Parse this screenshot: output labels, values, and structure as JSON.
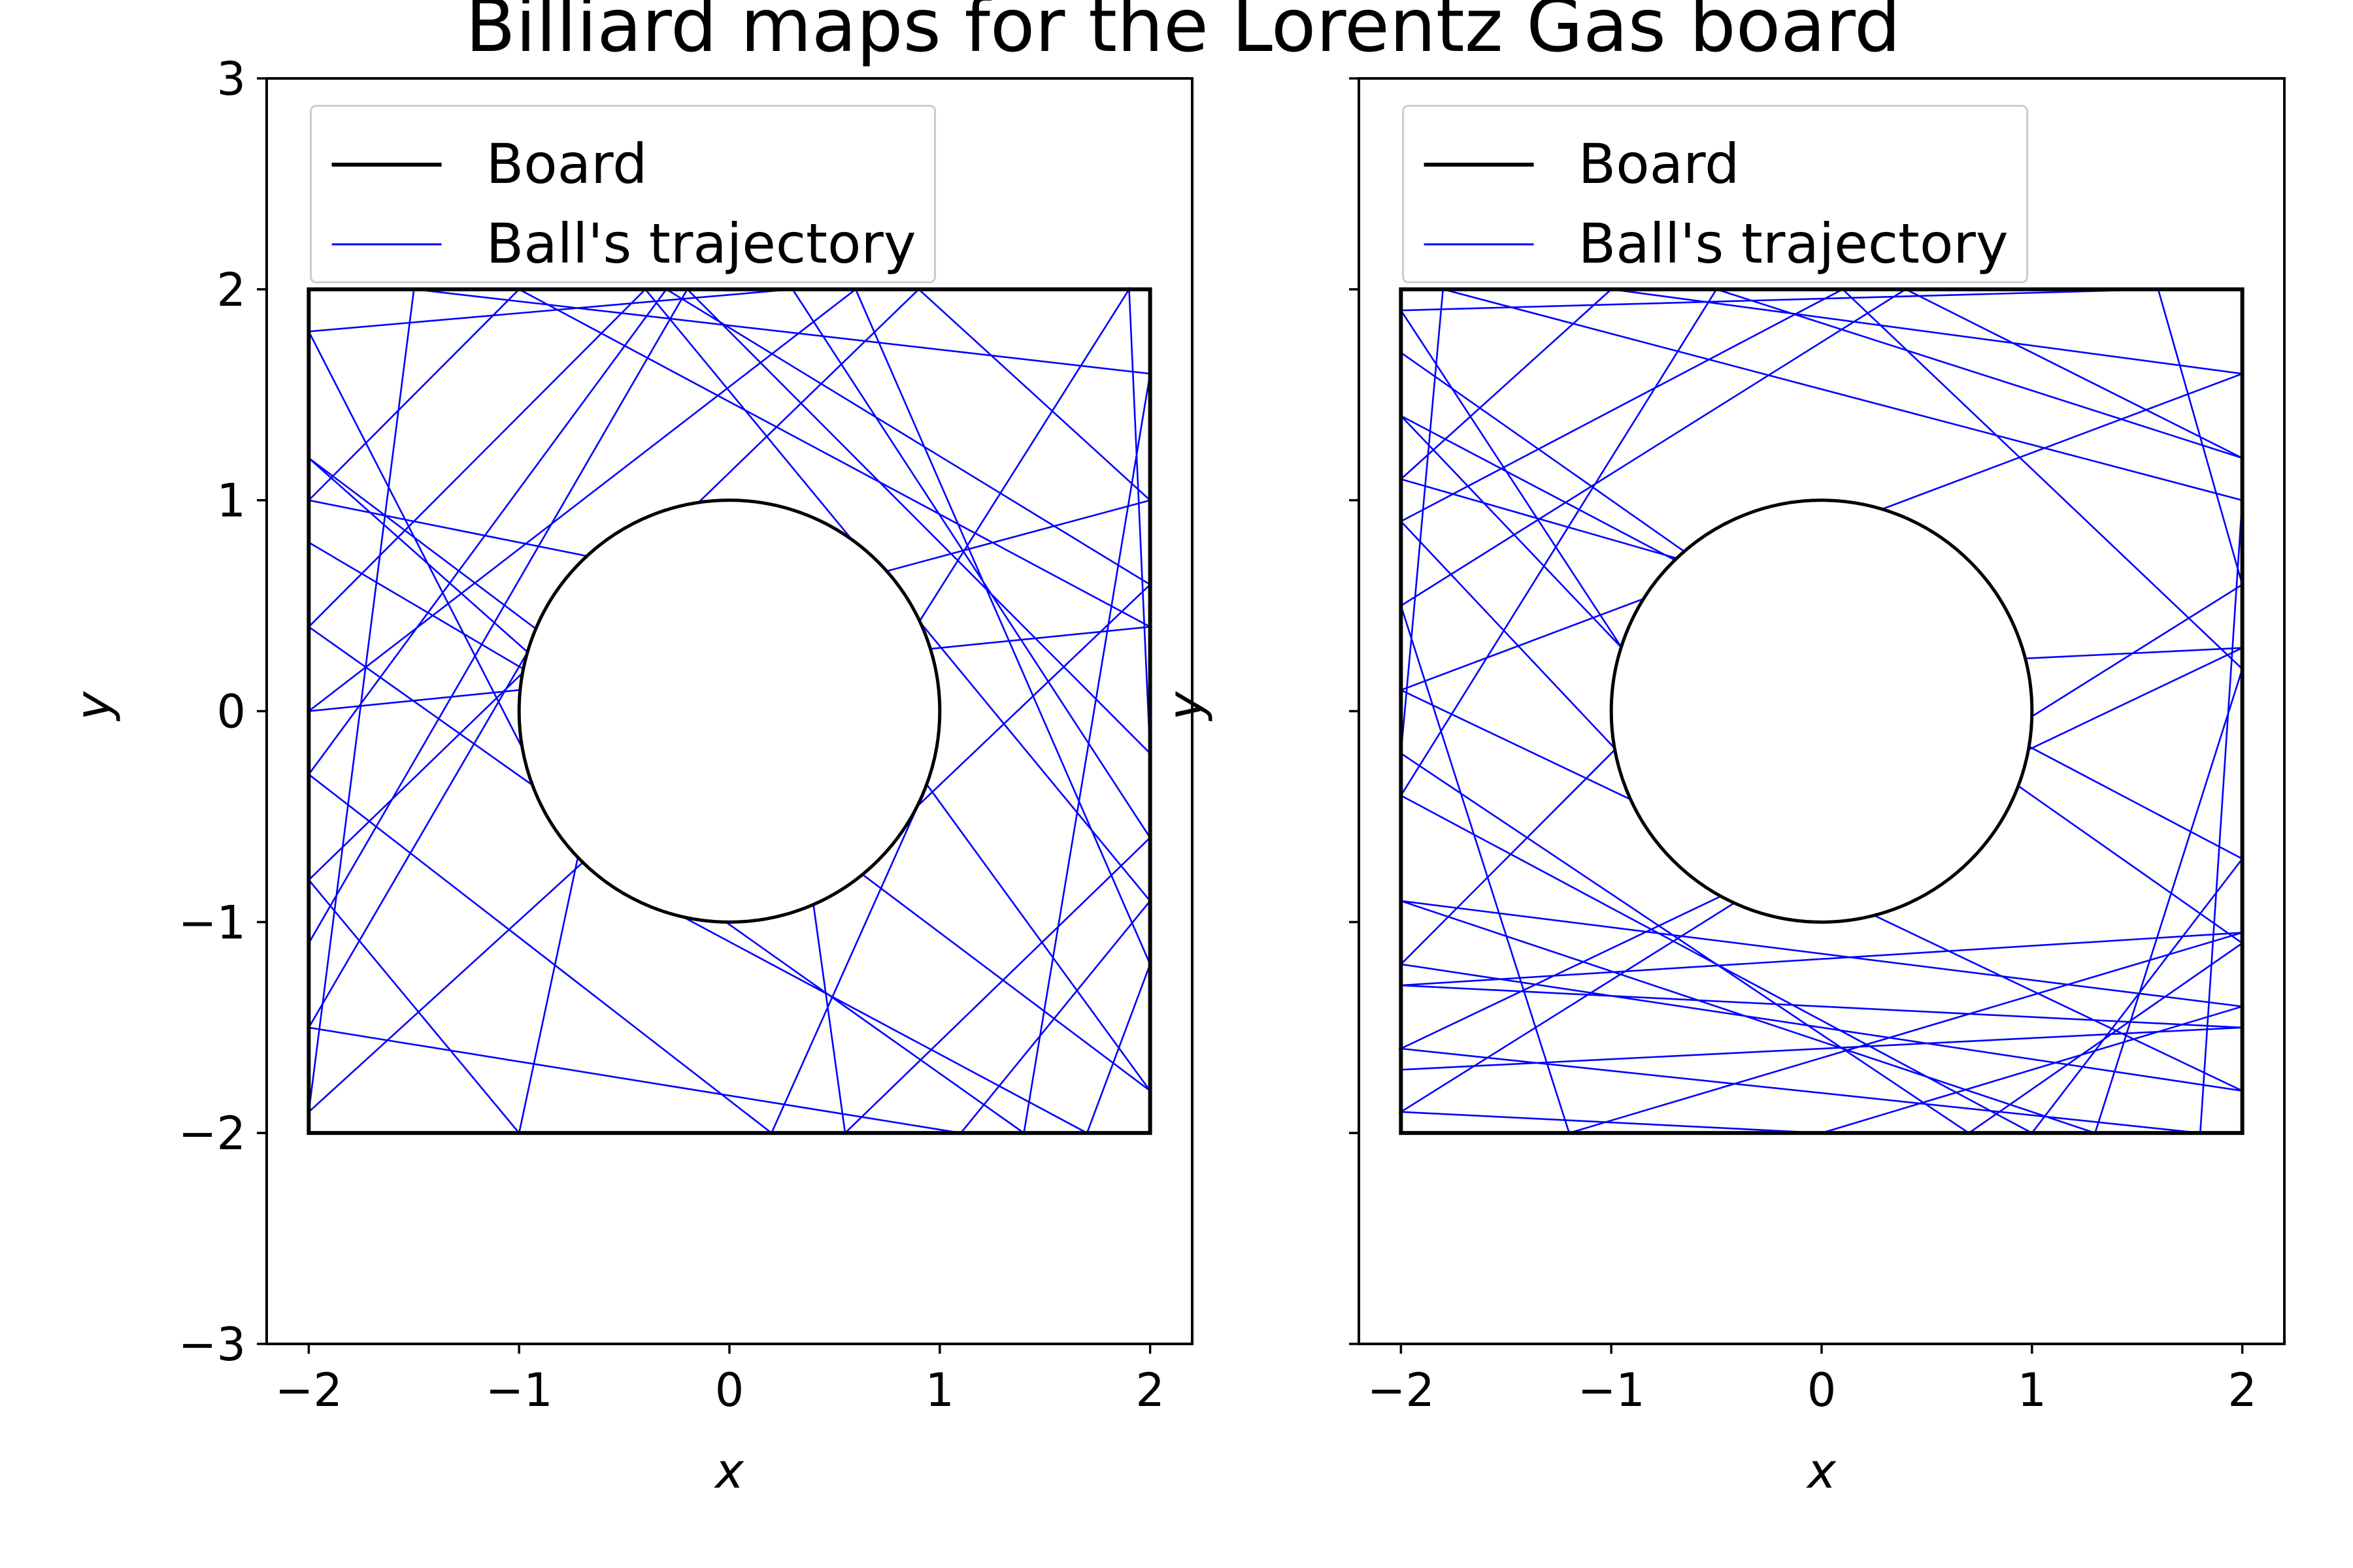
{
  "title": "Billiard maps for the Lorentz Gas board",
  "colors": {
    "board": "#000000",
    "trajectory": "#0000ff",
    "background": "#ffffff"
  },
  "legend": {
    "placement": "upper center",
    "board_label": "Board",
    "trajectory_label": "Ball's trajectory"
  },
  "chart_data": [
    {
      "type": "line",
      "xlabel": "x",
      "ylabel": "y",
      "xlim": [
        -2.2,
        2.2
      ],
      "ylim": [
        -3,
        3
      ],
      "xticks": [
        "−2",
        "−1",
        "0",
        "1",
        "2"
      ],
      "yticks": [
        "−3",
        "−2",
        "−1",
        "0",
        "1",
        "2",
        "3"
      ],
      "board": {
        "square": {
          "xmin": -2,
          "xmax": 2,
          "ymin": -2,
          "ymax": 2
        },
        "obstacle": {
          "cx": 0,
          "cy": 0,
          "r": 1
        }
      },
      "series": [
        {
          "name": "Ball's trajectory",
          "points": [
            [
              -2,
              0.8
            ],
            [
              -0.98,
              0.2
            ],
            [
              2,
              1.0
            ],
            [
              0.9,
              2
            ],
            [
              -2,
              -0.8
            ],
            [
              -1.0,
              -2
            ],
            [
              -0.72,
              -0.69
            ],
            [
              -2,
              1.8
            ],
            [
              0.3,
              2
            ],
            [
              2,
              -0.6
            ],
            [
              0.55,
              -2
            ],
            [
              0.4,
              -0.92
            ],
            [
              2,
              0.6
            ],
            [
              -0.3,
              2
            ],
            [
              -2,
              -0.3
            ],
            [
              0.2,
              -2
            ],
            [
              0.94,
              -0.35
            ],
            [
              2,
              -1.8
            ],
            [
              -2,
              1.2
            ],
            [
              -0.96,
              0.28
            ],
            [
              -2,
              -1.5
            ],
            [
              1.1,
              -2
            ],
            [
              2,
              -0.9
            ],
            [
              -0.4,
              2
            ],
            [
              -2,
              0.4
            ],
            [
              1.4,
              -2
            ],
            [
              2,
              1.6
            ],
            [
              -1.5,
              2
            ],
            [
              -2,
              -1.9
            ],
            [
              -0.7,
              -0.72
            ],
            [
              1.7,
              -2
            ],
            [
              2,
              -1.2
            ],
            [
              0.6,
              2
            ],
            [
              -2,
              0.0
            ],
            [
              2,
              0.4
            ],
            [
              -1.0,
              2
            ],
            [
              -2,
              1.0
            ],
            [
              0.9,
              0.42
            ],
            [
              1.9,
              2
            ],
            [
              2,
              -0.2
            ],
            [
              -0.2,
              2
            ],
            [
              -2,
              -1.1
            ]
          ]
        }
      ]
    },
    {
      "type": "line",
      "xlabel": "x",
      "ylabel": "y",
      "xlim": [
        -2.2,
        2.2
      ],
      "ylim": [
        -3,
        3
      ],
      "xticks": [
        "−2",
        "−1",
        "0",
        "1",
        "2"
      ],
      "yticks": [],
      "board": {
        "square": {
          "xmin": -2,
          "xmax": 2,
          "ymin": -2,
          "ymax": 2
        },
        "obstacle": {
          "cx": 0,
          "cy": 0,
          "r": 1
        }
      },
      "series": [
        {
          "name": "Ball's trajectory",
          "points": [
            [
              -2,
              -1.7
            ],
            [
              2,
              -1.5
            ],
            [
              -2,
              -1.3
            ],
            [
              2,
              -1.05
            ],
            [
              -1.2,
              -2
            ],
            [
              -2,
              0.5
            ],
            [
              0.4,
              2
            ],
            [
              2,
              1.2
            ],
            [
              -0.5,
              2
            ],
            [
              -2,
              -0.4
            ],
            [
              1.0,
              -2
            ],
            [
              2,
              -0.7
            ],
            [
              -2,
              1.4
            ],
            [
              -0.95,
              0.3
            ],
            [
              -2,
              1.9
            ],
            [
              1.6,
              2
            ],
            [
              2,
              0.6
            ],
            [
              -2,
              -1.9
            ],
            [
              0.0,
              -2
            ],
            [
              2,
              -1.4
            ],
            [
              -2,
              -0.9
            ],
            [
              1.3,
              -2
            ],
            [
              2,
              0.2
            ],
            [
              0.1,
              2
            ],
            [
              -2,
              0.9
            ],
            [
              -0.98,
              -0.18
            ],
            [
              -2,
              -1.2
            ],
            [
              2,
              -1.8
            ],
            [
              -2,
              0.1
            ],
            [
              2,
              1.6
            ],
            [
              -1.0,
              2
            ],
            [
              -2,
              1.1
            ],
            [
              0.97,
              0.25
            ],
            [
              2,
              0.3
            ],
            [
              -2,
              -1.6
            ],
            [
              1.8,
              -2
            ],
            [
              2,
              1.0
            ],
            [
              -1.8,
              2
            ],
            [
              -2,
              -0.2
            ],
            [
              0.7,
              -2
            ],
            [
              2,
              -1.1
            ],
            [
              -2,
              1.7
            ]
          ]
        }
      ]
    }
  ]
}
